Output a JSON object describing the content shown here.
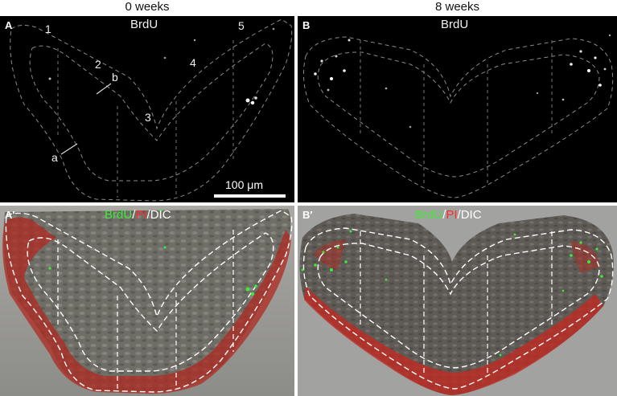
{
  "columns": {
    "left": "0 weeks",
    "right": "8 weeks"
  },
  "panels": {
    "A": {
      "letter": "A",
      "title": "BrdU"
    },
    "B": {
      "letter": "B",
      "title": "BrdU"
    },
    "A2": {
      "letter": "A′"
    },
    "B2": {
      "letter": "B′"
    }
  },
  "region_numbers": [
    "1",
    "2",
    "3",
    "4",
    "5"
  ],
  "layer_labels": {
    "a": "a",
    "b": "b"
  },
  "scale_bar": "100 μm",
  "legend": {
    "green": "BrdU",
    "sep1": "/",
    "red": "PI",
    "sep2": "/",
    "dic": "DIC"
  },
  "colors": {
    "brdu": "#3fe83a",
    "pi": "#ff2a2a",
    "background_fluor": "#000000"
  }
}
